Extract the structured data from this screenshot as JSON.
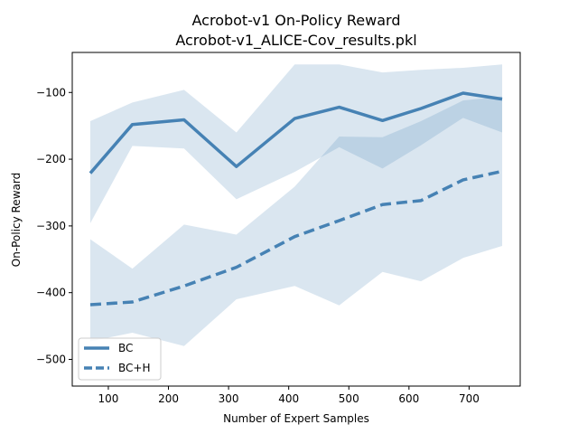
{
  "chart_data": {
    "type": "line",
    "title": "Acrobot-v1 On-Policy Reward",
    "subtitle": "Acrobot-v1_ALICE-Cov_results.pkl",
    "xlabel": "Number of Expert Samples",
    "ylabel": "On-Policy Reward",
    "xlim": [
      40,
      785
    ],
    "ylim": [
      -540,
      -40
    ],
    "xticks": [
      100,
      200,
      300,
      400,
      500,
      600,
      700
    ],
    "yticks": [
      -100,
      -200,
      -300,
      -400,
      -500
    ],
    "x": [
      70,
      140,
      226,
      313,
      410,
      484,
      556,
      620,
      690,
      755
    ],
    "series": [
      {
        "name": "BC",
        "style": "solid",
        "color": "#4682b4",
        "values": [
          -221,
          -148,
          -141,
          -211,
          -139,
          -122,
          -142,
          -124,
          -101,
          -110
        ],
        "upper": [
          -143,
          -115,
          -96,
          -160,
          -58,
          -58,
          -70,
          -66,
          -63,
          -58
        ],
        "lower": [
          -296,
          -180,
          -184,
          -260,
          -219,
          -182,
          -214,
          -179,
          -138,
          -160
        ]
      },
      {
        "name": "BC+H",
        "style": "dashed",
        "color": "#4682b4",
        "values": [
          -418,
          -414,
          -390,
          -362,
          -316,
          -292,
          -268,
          -262,
          -231,
          -218
        ],
        "upper": [
          -320,
          -364,
          -298,
          -313,
          -241,
          -166,
          -167,
          -143,
          -112,
          -106
        ],
        "lower": [
          -473,
          -460,
          -480,
          -410,
          -390,
          -419,
          -369,
          -383,
          -348,
          -330
        ]
      }
    ],
    "legend": {
      "position": "lower-left",
      "entries": [
        "BC",
        "BC+H"
      ]
    },
    "grid": false
  }
}
